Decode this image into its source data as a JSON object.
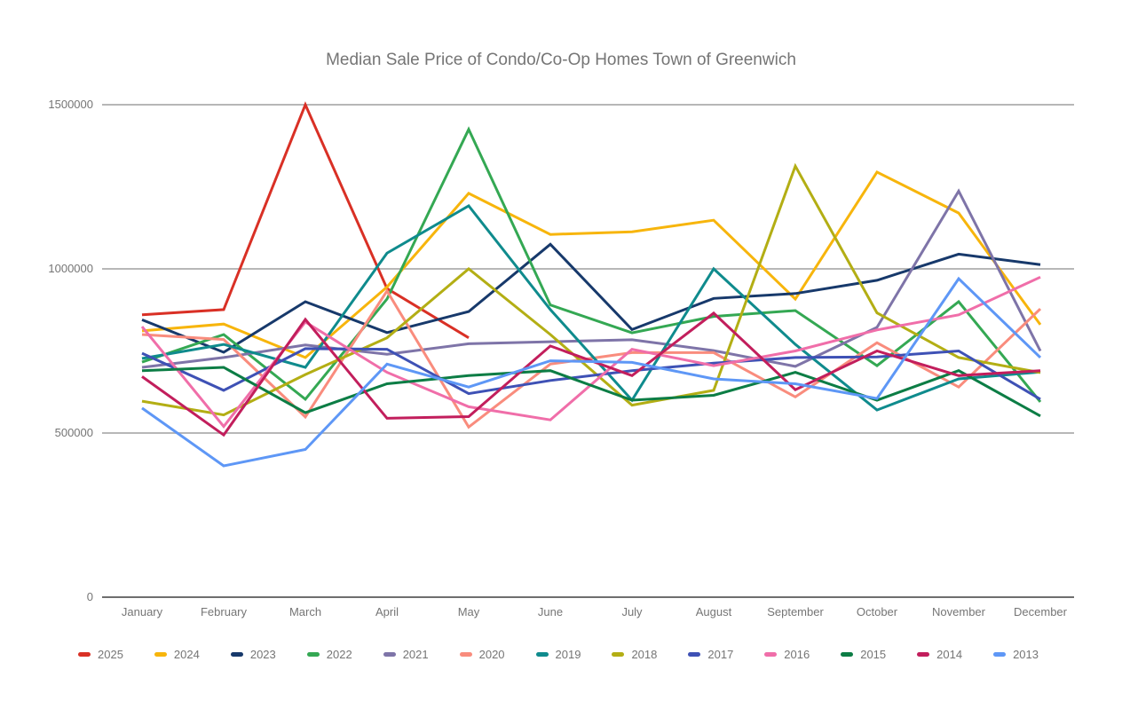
{
  "title": "Median Sale Price of Condo/Co-Op Homes Town of Greenwich",
  "chart_data": {
    "type": "line",
    "title": "Median Sale Price of Condo/Co-Op Homes Town of Greenwich",
    "xlabel": "",
    "ylabel": "",
    "ylim": [
      0,
      1500000
    ],
    "y_ticks": [
      0,
      500000,
      1000000,
      1500000
    ],
    "grid": true,
    "legend_position": "bottom",
    "categories": [
      "January",
      "February",
      "March",
      "April",
      "May",
      "June",
      "July",
      "August",
      "September",
      "October",
      "November",
      "December"
    ],
    "series": [
      {
        "name": "2025",
        "color": "#d93025",
        "values": [
          860000,
          876000,
          1500000,
          940000,
          790000,
          null,
          null,
          null,
          null,
          null,
          null,
          null
        ]
      },
      {
        "name": "2024",
        "color": "#f7b50c",
        "values": [
          811000,
          832000,
          730000,
          945000,
          1230000,
          1105000,
          1113000,
          1148000,
          908000,
          1295000,
          1170000,
          830000
        ]
      },
      {
        "name": "2023",
        "color": "#17396b",
        "values": [
          845000,
          746000,
          900000,
          806000,
          870000,
          1075000,
          815000,
          910000,
          925000,
          965000,
          1045000,
          1013000
        ]
      },
      {
        "name": "2022",
        "color": "#34a853",
        "values": [
          716000,
          800000,
          603000,
          908000,
          1425000,
          890000,
          805000,
          855000,
          873000,
          705000,
          900000,
          595000
        ]
      },
      {
        "name": "2021",
        "color": "#7e74a8",
        "values": [
          700000,
          730000,
          768000,
          740000,
          772000,
          778000,
          784000,
          751000,
          703000,
          822000,
          1237000,
          750000
        ]
      },
      {
        "name": "2020",
        "color": "#f98c7d",
        "values": [
          800000,
          785000,
          549000,
          933000,
          518000,
          710000,
          745000,
          745000,
          610000,
          775000,
          640000,
          878000
        ]
      },
      {
        "name": "2019",
        "color": "#0f8b8d",
        "values": [
          727000,
          770000,
          700000,
          1048000,
          1192000,
          876000,
          600000,
          1000000,
          770000,
          570000,
          665000,
          686000
        ]
      },
      {
        "name": "2018",
        "color": "#b3ae14",
        "values": [
          597000,
          555000,
          678000,
          790000,
          1000000,
          800000,
          585000,
          630000,
          1313000,
          866000,
          730000,
          684000
        ]
      },
      {
        "name": "2017",
        "color": "#3e51b5",
        "values": [
          743000,
          630000,
          757000,
          755000,
          620000,
          660000,
          690000,
          713000,
          730000,
          732000,
          750000,
          603000
        ]
      },
      {
        "name": "2016",
        "color": "#f06ea9",
        "values": [
          824000,
          520000,
          838000,
          685000,
          580000,
          540000,
          755000,
          705000,
          750000,
          814000,
          860000,
          975000
        ]
      },
      {
        "name": "2015",
        "color": "#0c7d45",
        "values": [
          690000,
          700000,
          562000,
          650000,
          675000,
          690000,
          600000,
          615000,
          685000,
          600000,
          690000,
          552000
        ]
      },
      {
        "name": "2014",
        "color": "#c21e5c",
        "values": [
          672000,
          494000,
          846000,
          545000,
          550000,
          765000,
          675000,
          865000,
          632000,
          750000,
          675000,
          690000
        ]
      },
      {
        "name": "2013",
        "color": "#5e97f6",
        "values": [
          576000,
          400000,
          450000,
          710000,
          640000,
          720000,
          715000,
          665000,
          650000,
          605000,
          970000,
          730000
        ]
      }
    ]
  }
}
